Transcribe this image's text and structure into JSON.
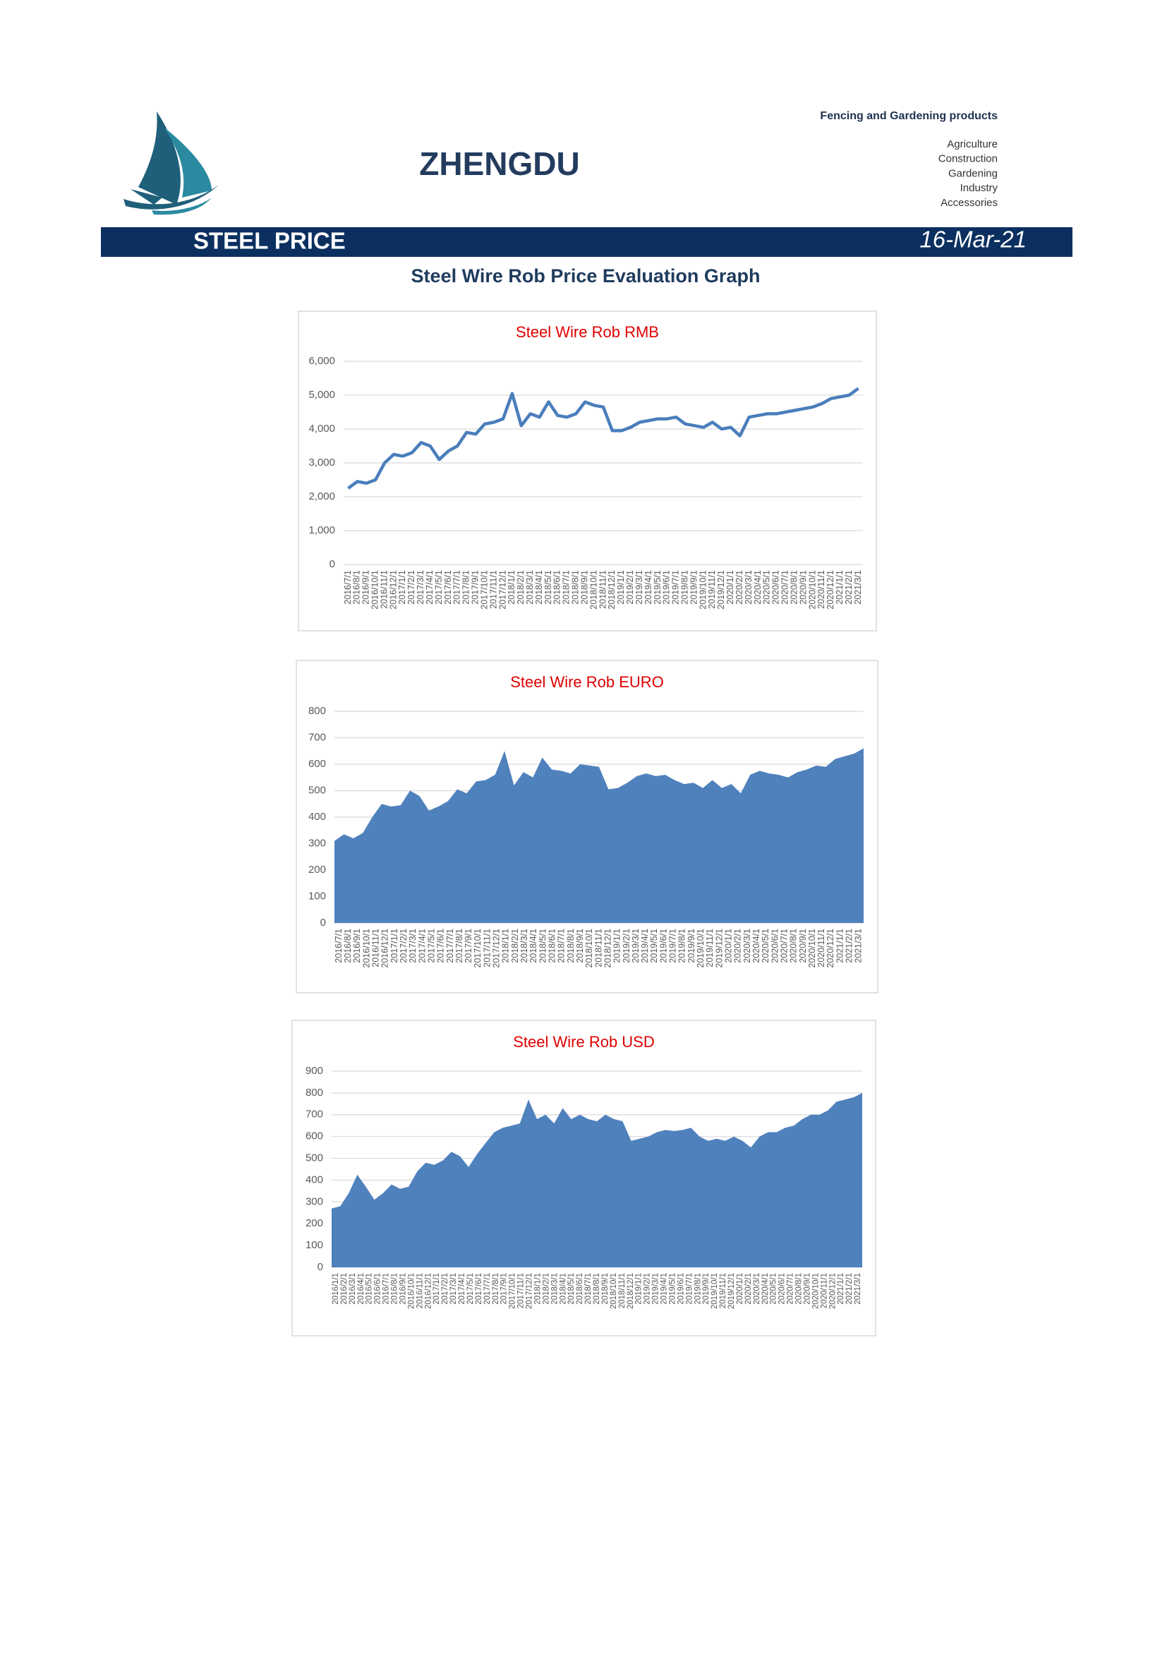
{
  "header": {
    "brand": "ZHENGDU",
    "tagline": "Fencing and Gardening products",
    "sectors": [
      "Agriculture",
      "Construction",
      "Gardening",
      "Industry",
      "Accessories"
    ]
  },
  "banner": {
    "title": "STEEL PRICE",
    "date": "16-Mar-21"
  },
  "heading": "Steel Wire Rob Price Evaluation Graph",
  "chart_data": [
    {
      "type": "line",
      "title": "Steel Wire Rob RMB",
      "color": "#4a7ebb",
      "grid": true,
      "categories": [
        "2016/7/1",
        "2016/8/1",
        "2016/9/1",
        "2016/10/1",
        "2016/11/1",
        "2016/12/1",
        "2017/1/1",
        "2017/2/1",
        "2017/3/1",
        "2017/4/1",
        "2017/5/1",
        "2017/6/1",
        "2017/7/1",
        "2017/8/1",
        "2017/9/1",
        "2017/10/1",
        "2017/11/1",
        "2017/12/1",
        "2018/1/1",
        "2018/2/1",
        "2018/3/1",
        "2018/4/1",
        "2018/5/1",
        "2018/6/1",
        "2018/7/1",
        "2018/8/1",
        "2018/9/1",
        "2018/10/1",
        "2018/11/1",
        "2018/12/1",
        "2019/1/1",
        "2019/2/1",
        "2019/3/1",
        "2019/4/1",
        "2019/5/1",
        "2019/6/1",
        "2019/7/1",
        "2019/8/1",
        "2019/9/1",
        "2019/10/1",
        "2019/11/1",
        "2019/12/1",
        "2020/1/1",
        "2020/2/1",
        "2020/3/1",
        "2020/4/1",
        "2020/5/1",
        "2020/6/1",
        "2020/7/1",
        "2020/8/1",
        "2020/9/1",
        "2020/10/1",
        "2020/11/1",
        "2020/12/1",
        "2021/1/1",
        "2021/2/1",
        "2021/3/1"
      ],
      "values": [
        2250,
        2450,
        2400,
        2500,
        3000,
        3250,
        3200,
        3300,
        3600,
        3500,
        3100,
        3350,
        3500,
        3900,
        3850,
        4150,
        4200,
        4300,
        5050,
        4100,
        4450,
        4350,
        4800,
        4400,
        4350,
        4450,
        4800,
        4700,
        4650,
        3950,
        3950,
        4050,
        4200,
        4250,
        4300,
        4300,
        4350,
        4150,
        4100,
        4050,
        4200,
        4000,
        4050,
        3800,
        4350,
        4400,
        4450,
        4450,
        4500,
        4550,
        4600,
        4650,
        4750,
        4900,
        4950,
        5000,
        5200
      ],
      "ylim": [
        0,
        6000
      ],
      "yticks": [
        0,
        {
          "value": 1000,
          "label": "1,000"
        },
        {
          "value": 2000,
          "label": "2,000"
        },
        {
          "value": 3000,
          "label": "3,000"
        },
        {
          "value": 4000,
          "label": "4,000"
        },
        {
          "value": 5000,
          "label": "5,000"
        },
        {
          "value": 6000,
          "label": "6,000"
        }
      ]
    },
    {
      "type": "area",
      "title": "Steel Wire Rob EURO",
      "color": "#4f81bd",
      "grid": true,
      "categories": [
        "2016/7/1",
        "2016/8/1",
        "2016/9/1",
        "2016/10/1",
        "2016/11/1",
        "2016/12/1",
        "2017/1/1",
        "2017/2/1",
        "2017/3/1",
        "2017/4/1",
        "2017/5/1",
        "2017/6/1",
        "2017/7/1",
        "2017/8/1",
        "2017/9/1",
        "2017/10/1",
        "2017/11/1",
        "2017/12/1",
        "2018/1/1",
        "2018/2/1",
        "2018/3/1",
        "2018/4/1",
        "2018/5/1",
        "2018/6/1",
        "2018/7/1",
        "2018/8/1",
        "2018/9/1",
        "2018/10/1",
        "2018/11/1",
        "2018/12/1",
        "2019/1/1",
        "2019/2/1",
        "2019/3/1",
        "2019/4/1",
        "2019/5/1",
        "2019/6/1",
        "2019/7/1",
        "2019/8/1",
        "2019/9/1",
        "2019/10/1",
        "2019/11/1",
        "2019/12/1",
        "2020/1/1",
        "2020/2/1",
        "2020/3/1",
        "2020/4/1",
        "2020/5/1",
        "2020/6/1",
        "2020/7/1",
        "2020/8/1",
        "2020/9/1",
        "2020/10/1",
        "2020/11/1",
        "2020/12/1",
        "2021/1/1",
        "2021/2/1",
        "2021/3/1"
      ],
      "values": [
        310,
        335,
        320,
        340,
        400,
        450,
        440,
        445,
        500,
        480,
        425,
        440,
        460,
        505,
        490,
        535,
        540,
        560,
        650,
        520,
        570,
        550,
        625,
        580,
        575,
        565,
        600,
        595,
        590,
        505,
        510,
        530,
        555,
        565,
        555,
        560,
        540,
        525,
        530,
        510,
        540,
        510,
        525,
        490,
        560,
        575,
        565,
        560,
        550,
        570,
        580,
        595,
        590,
        620,
        630,
        640,
        660
      ],
      "ylim": [
        0,
        800
      ],
      "yticks": [
        0,
        100,
        200,
        300,
        400,
        500,
        600,
        700,
        800
      ]
    },
    {
      "type": "area",
      "title": "Steel Wire Rob USD",
      "color": "#4f81bd",
      "grid": true,
      "categories": [
        "2016/1/1",
        "2016/2/1",
        "2016/3/1",
        "2016/4/1",
        "2016/5/1",
        "2016/6/1",
        "2016/7/1",
        "2016/8/1",
        "2016/9/1",
        "2016/10/1",
        "2016/11/1",
        "2016/12/1",
        "2017/1/1",
        "2017/2/1",
        "2017/3/1",
        "2017/4/1",
        "2017/5/1",
        "2017/6/1",
        "2017/7/1",
        "2017/8/1",
        "2017/9/1",
        "2017/10/1",
        "2017/11/1",
        "2017/12/1",
        "2018/1/1",
        "2018/2/1",
        "2018/3/1",
        "2018/4/1",
        "2018/5/1",
        "2018/6/1",
        "2018/7/1",
        "2018/8/1",
        "2018/9/1",
        "2018/10/1",
        "2018/11/1",
        "2018/12/1",
        "2019/1/1",
        "2019/2/1",
        "2019/3/1",
        "2019/4/1",
        "2019/5/1",
        "2019/6/1",
        "2019/7/1",
        "2019/8/1",
        "2019/9/1",
        "2019/10/1",
        "2019/11/1",
        "2019/12/1",
        "2020/1/1",
        "2020/2/1",
        "2020/3/1",
        "2020/4/1",
        "2020/5/1",
        "2020/6/1",
        "2020/7/1",
        "2020/8/1",
        "2020/9/1",
        "2020/10/1",
        "2020/11/1",
        "2020/12/1",
        "2021/1/1",
        "2021/2/1",
        "2021/3/1"
      ],
      "values": [
        270,
        280,
        340,
        425,
        370,
        310,
        340,
        380,
        360,
        370,
        440,
        480,
        470,
        490,
        530,
        510,
        460,
        520,
        570,
        620,
        640,
        650,
        660,
        770,
        680,
        700,
        660,
        730,
        680,
        700,
        680,
        670,
        700,
        680,
        670,
        580,
        590,
        600,
        620,
        630,
        625,
        630,
        640,
        600,
        580,
        590,
        580,
        600,
        580,
        550,
        600,
        620,
        620,
        640,
        650,
        680,
        700,
        700,
        720,
        760,
        770,
        780,
        800
      ],
      "ylim": [
        0,
        900
      ],
      "yticks": [
        0,
        100,
        200,
        300,
        400,
        500,
        600,
        700,
        800,
        900
      ]
    }
  ]
}
